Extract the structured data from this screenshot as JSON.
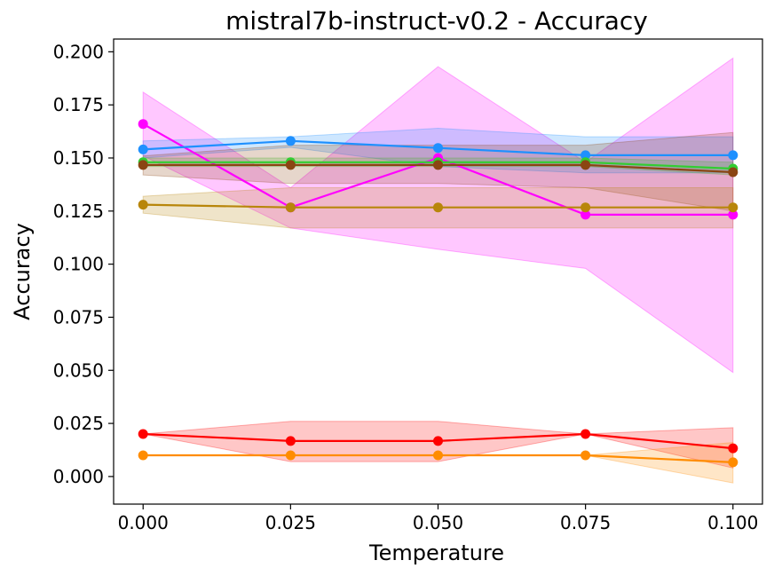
{
  "chart_data": {
    "type": "line",
    "title": "mistral7b-instruct-v0.2 - Accuracy",
    "xlabel": "Temperature",
    "ylabel": "Accuracy",
    "x": [
      0.0,
      0.025,
      0.05,
      0.075,
      0.1
    ],
    "xticks": [
      "0.000",
      "0.025",
      "0.050",
      "0.075",
      "0.100"
    ],
    "yticks": [
      "0.000",
      "0.025",
      "0.050",
      "0.075",
      "0.100",
      "0.125",
      "0.150",
      "0.175",
      "0.200"
    ],
    "ytick_values": [
      0.0,
      0.025,
      0.05,
      0.075,
      0.1,
      0.125,
      0.15,
      0.175,
      0.2
    ],
    "xlim": [
      -0.005,
      0.105
    ],
    "ylim": [
      -0.013,
      0.206
    ],
    "grid": false,
    "series": [
      {
        "name": "magenta",
        "color": "#ff00ff",
        "values": [
          0.166,
          0.1267,
          0.15,
          0.1233,
          0.1233
        ],
        "lower": [
          0.151,
          0.117,
          0.107,
          0.098,
          0.049
        ],
        "upper": [
          0.181,
          0.136,
          0.193,
          0.148,
          0.197
        ]
      },
      {
        "name": "blue",
        "color": "#1e90ff",
        "values": [
          0.154,
          0.158,
          0.1547,
          0.1513,
          0.1513
        ],
        "lower": [
          0.15,
          0.155,
          0.146,
          0.143,
          0.143
        ],
        "upper": [
          0.158,
          0.16,
          0.164,
          0.16,
          0.16
        ]
      },
      {
        "name": "green",
        "color": "#32cd32",
        "values": [
          0.148,
          0.148,
          0.148,
          0.148,
          0.145
        ],
        "lower": [
          0.146,
          0.146,
          0.146,
          0.146,
          0.142
        ],
        "upper": [
          0.15,
          0.15,
          0.15,
          0.15,
          0.148
        ]
      },
      {
        "name": "brown",
        "color": "#8b4513",
        "values": [
          0.1467,
          0.1467,
          0.1467,
          0.1467,
          0.1433
        ],
        "lower": [
          0.142,
          0.138,
          0.138,
          0.136,
          0.125
        ],
        "upper": [
          0.151,
          0.156,
          0.156,
          0.156,
          0.162
        ]
      },
      {
        "name": "goldenrod",
        "color": "#b8860b",
        "values": [
          0.128,
          0.1267,
          0.1267,
          0.1267,
          0.1267
        ],
        "lower": [
          0.124,
          0.117,
          0.117,
          0.117,
          0.117
        ],
        "upper": [
          0.132,
          0.136,
          0.136,
          0.136,
          0.136
        ]
      },
      {
        "name": "red",
        "color": "#ff0000",
        "values": [
          0.02,
          0.0167,
          0.0167,
          0.02,
          0.0133
        ],
        "lower": [
          0.02,
          0.007,
          0.007,
          0.02,
          0.004
        ],
        "upper": [
          0.02,
          0.026,
          0.026,
          0.02,
          0.023
        ]
      },
      {
        "name": "orange",
        "color": "#ff8c00",
        "values": [
          0.01,
          0.01,
          0.01,
          0.01,
          0.0067
        ],
        "lower": [
          0.01,
          0.01,
          0.01,
          0.01,
          -0.003
        ],
        "upper": [
          0.01,
          0.01,
          0.01,
          0.01,
          0.016
        ]
      }
    ]
  }
}
